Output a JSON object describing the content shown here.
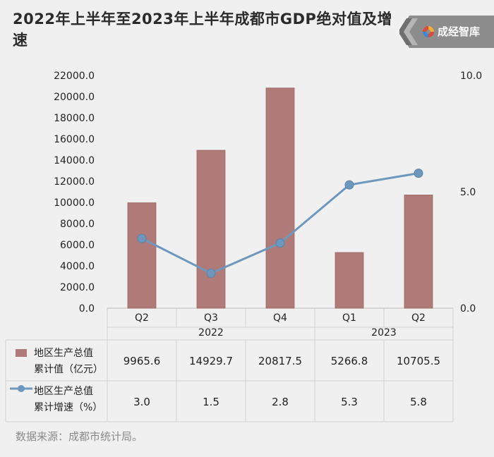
{
  "title": "2022年上半年至2023年上半年成都市GDP绝对值及增速",
  "logo_name": "成经智库",
  "source_note": "数据来源：成都市统计局。",
  "colors": {
    "bar": "#b07a78",
    "line": "#6d97bd",
    "background": "#f0f0f0"
  },
  "chart_data": {
    "type": "bar",
    "categories": [
      "Q2",
      "Q3",
      "Q4",
      "Q1",
      "Q2"
    ],
    "groups": [
      {
        "label": "2022",
        "categories": [
          "Q2",
          "Q3",
          "Q4"
        ]
      },
      {
        "label": "2023",
        "categories": [
          "Q1",
          "Q2"
        ]
      }
    ],
    "series": [
      {
        "name": "地区生产总值累计值（亿元）",
        "type": "bar",
        "axis": "left",
        "values": [
          9965.6,
          14929.7,
          20817.5,
          5266.8,
          10705.5
        ],
        "labels": [
          "9965.6",
          "14929.7",
          "20817.5",
          "5266.8",
          "10705.5"
        ]
      },
      {
        "name": "地区生产总值累计增速（%）",
        "type": "line",
        "axis": "right",
        "values": [
          3.0,
          1.5,
          2.8,
          5.3,
          5.8
        ],
        "labels": [
          "3.0",
          "1.5",
          "2.8",
          "5.3",
          "5.8"
        ]
      }
    ],
    "legend_lines": [
      [
        "地区生产总值",
        "累计值（亿元）"
      ],
      [
        "地区生产总值",
        "累计增速（%）"
      ]
    ],
    "y_left": {
      "ticks": [
        "0.0",
        "2000.0",
        "4000.0",
        "6000.0",
        "8000.0",
        "10000.0",
        "12000.0",
        "14000.0",
        "16000.0",
        "18000.0",
        "20000.0",
        "22000.0"
      ],
      "range": [
        0,
        22000
      ]
    },
    "y_right": {
      "ticks": [
        "0.0",
        "5.0",
        "10.0"
      ],
      "range": [
        0,
        10
      ]
    },
    "legend_placement": "data table below chart",
    "grid": false
  }
}
